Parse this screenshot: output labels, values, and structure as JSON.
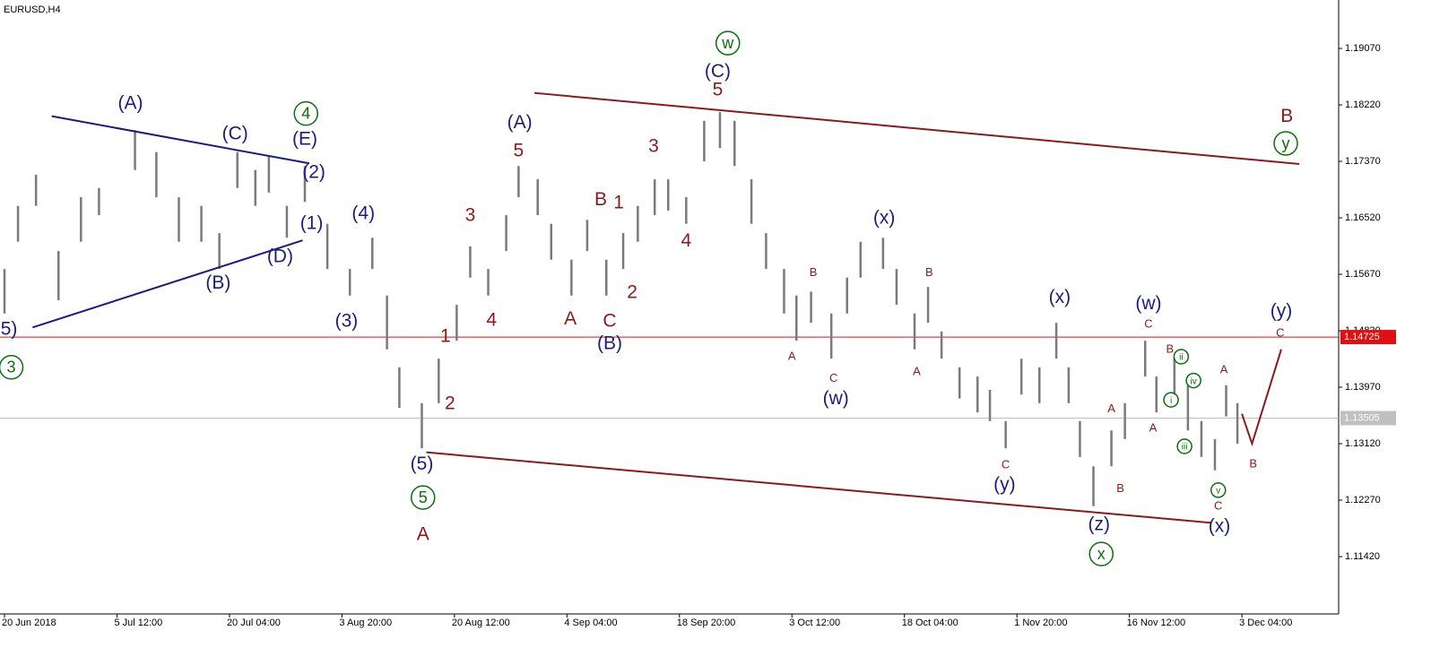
{
  "chart_data": {
    "type": "hlbar",
    "title": "EURUSD,H4",
    "color": "#7a7a7a",
    "x": [
      0.0,
      0.12,
      0.28,
      0.48,
      0.68,
      0.84,
      1.16,
      1.35,
      1.55,
      1.75,
      1.91,
      2.07,
      2.23,
      2.35,
      2.51,
      2.67,
      2.87,
      3.07,
      3.27,
      3.4,
      3.51,
      3.71,
      3.86,
      4.02,
      4.14,
      4.3,
      4.46,
      4.57,
      4.74,
      4.86,
      5.04,
      5.18,
      5.35,
      5.5,
      5.63,
      5.78,
      5.9,
      6.06,
      6.22,
      6.36,
      6.49,
      6.64,
      6.77,
      6.93,
      7.04,
      7.17,
      7.35,
      7.49,
      7.61,
      7.81,
      7.93,
      8.09,
      8.21,
      8.33,
      8.49,
      8.65,
      8.76,
      8.9,
      9.04,
      9.2,
      9.35,
      9.46,
      9.56,
      9.68,
      9.84,
      9.96,
      10.14,
      10.24,
      10.4,
      10.52,
      10.64,
      10.76,
      10.86,
      10.96
    ],
    "high": [
      1.1575,
      1.167,
      1.1717,
      1.1602,
      1.1683,
      1.1697,
      1.1784,
      1.1751,
      1.1683,
      1.167,
      1.1629,
      1.1751,
      1.1724,
      1.1744,
      1.167,
      1.173,
      1.1643,
      1.1575,
      1.1622,
      1.1535,
      1.1427,
      1.1373,
      1.144,
      1.1521,
      1.1609,
      1.1575,
      1.1656,
      1.173,
      1.171,
      1.1643,
      1.1589,
      1.1649,
      1.1589,
      1.1629,
      1.167,
      1.171,
      1.171,
      1.1683,
      1.1798,
      1.1811,
      1.1798,
      1.171,
      1.1629,
      1.1575,
      1.1535,
      1.1541,
      1.1508,
      1.1562,
      1.1616,
      1.1622,
      1.1575,
      1.1508,
      1.1548,
      1.1481,
      1.1427,
      1.1413,
      1.1393,
      1.1346,
      1.144,
      1.1427,
      1.1494,
      1.1427,
      1.1346,
      1.1278,
      1.1332,
      1.1373,
      1.1467,
      1.1413,
      1.144,
      1.14,
      1.1346,
      1.1319,
      1.14,
      1.1373
    ],
    "low": [
      1.1508,
      1.1616,
      1.167,
      1.1528,
      1.1616,
      1.1656,
      1.1724,
      1.1683,
      1.1616,
      1.1616,
      1.1575,
      1.1697,
      1.167,
      1.169,
      1.1622,
      1.1676,
      1.1575,
      1.1535,
      1.1575,
      1.1454,
      1.1366,
      1.1305,
      1.1373,
      1.1467,
      1.1562,
      1.1535,
      1.1602,
      1.1683,
      1.1656,
      1.1589,
      1.1535,
      1.1602,
      1.1535,
      1.1575,
      1.1616,
      1.1656,
      1.1663,
      1.1643,
      1.1737,
      1.1757,
      1.173,
      1.1643,
      1.1575,
      1.1508,
      1.1467,
      1.1494,
      1.144,
      1.1508,
      1.1562,
      1.1575,
      1.1521,
      1.1454,
      1.1494,
      1.144,
      1.138,
      1.1359,
      1.1346,
      1.1305,
      1.1386,
      1.1373,
      1.144,
      1.1373,
      1.1292,
      1.1218,
      1.1278,
      1.1319,
      1.1413,
      1.1359,
      1.1386,
      1.1332,
      1.1292,
      1.1272,
      1.1353,
      1.1312
    ],
    "xlim": [
      -0.04,
      11.86
    ],
    "xticks": [
      {
        "value": 0,
        "label": "20 Jun 2018"
      },
      {
        "value": 1,
        "label": "5 Jul 12:00"
      },
      {
        "value": 2,
        "label": "20 Jul 04:00"
      },
      {
        "value": 3,
        "label": "3 Aug 20:00"
      },
      {
        "value": 4,
        "label": "20 Aug 12:00"
      },
      {
        "value": 5,
        "label": "4 Sep 04:00"
      },
      {
        "value": 6,
        "label": "18 Sep 20:00"
      },
      {
        "value": 7,
        "label": "3 Oct 12:00"
      },
      {
        "value": 8,
        "label": "18 Oct 04:00"
      },
      {
        "value": 9,
        "label": "1 Nov 20:00"
      },
      {
        "value": 10,
        "label": "16 Nov 12:00"
      },
      {
        "value": 11,
        "label": "3 Dec 04:00"
      }
    ],
    "ylim": [
      1.10557,
      1.19799
    ],
    "yticks": [
      {
        "value": 1.1907,
        "label": "1.19070"
      },
      {
        "value": 1.1822,
        "label": "1.18220"
      },
      {
        "value": 1.1737,
        "label": "1.17370"
      },
      {
        "value": 1.1652,
        "label": "1.16520"
      },
      {
        "value": 1.1567,
        "label": "1.15670"
      },
      {
        "value": 1.1482,
        "label": "1.14820"
      },
      {
        "value": 1.1397,
        "label": "1.13970"
      },
      {
        "value": 1.1312,
        "label": "1.13120"
      },
      {
        "value": 1.1227,
        "label": "1.12270"
      },
      {
        "value": 1.1142,
        "label": "1.11420"
      }
    ],
    "levels": [
      {
        "value": 1.14725,
        "color": "#e01010"
      },
      {
        "value": 1.13505,
        "color": "#c0c0c0"
      }
    ],
    "trendlines": [
      {
        "x": [
          0.42,
          2.71
        ],
        "y": [
          1.1805,
          1.1734
        ],
        "color": "#1c1c7c"
      },
      {
        "x": [
          0.25,
          2.65
        ],
        "y": [
          1.1487,
          1.1618
        ],
        "color": "#1c1c7c"
      },
      {
        "x": [
          4.71,
          11.51
        ],
        "y": [
          1.184,
          1.1733
        ],
        "color": "#8b1a1a"
      },
      {
        "x": [
          3.75,
          10.72
        ],
        "y": [
          1.1299,
          1.1193
        ],
        "color": "#8b1a1a"
      },
      {
        "x": [
          11.0,
          11.09,
          11.35
        ],
        "y": [
          1.1357,
          1.1312,
          1.1454
        ],
        "color": "#8b1a1a"
      }
    ],
    "annotations": [
      {
        "text": "5)",
        "x": 0.04,
        "y": 1.1485,
        "color": "#1c1c7c",
        "style": "large"
      },
      {
        "text": "3",
        "x": 0.06,
        "y": 1.1427,
        "color": "#0a6e0a",
        "style": "circled"
      },
      {
        "text": "(A)",
        "x": 1.12,
        "y": 1.1825,
        "color": "#1c1c7c",
        "style": "large"
      },
      {
        "text": "(C)",
        "x": 2.05,
        "y": 1.1779,
        "color": "#1c1c7c",
        "style": "large"
      },
      {
        "text": "4",
        "x": 2.68,
        "y": 1.1809,
        "color": "#0a6e0a",
        "style": "circled"
      },
      {
        "text": "(E)",
        "x": 2.67,
        "y": 1.1771,
        "color": "#1c1c7c",
        "style": "large"
      },
      {
        "text": "(2)",
        "x": 2.75,
        "y": 1.1721,
        "color": "#1c1c7c",
        "style": "large"
      },
      {
        "text": "(1)",
        "x": 2.73,
        "y": 1.1644,
        "color": "#1c1c7c",
        "style": "large"
      },
      {
        "text": "(D)",
        "x": 2.45,
        "y": 1.1594,
        "color": "#1c1c7c",
        "style": "large"
      },
      {
        "text": "(B)",
        "x": 1.9,
        "y": 1.1554,
        "color": "#1c1c7c",
        "style": "large"
      },
      {
        "text": "(4)",
        "x": 3.19,
        "y": 1.1659,
        "color": "#1c1c7c",
        "style": "large"
      },
      {
        "text": "(3)",
        "x": 3.04,
        "y": 1.1497,
        "color": "#1c1c7c",
        "style": "large"
      },
      {
        "text": "(5)",
        "x": 3.71,
        "y": 1.1282,
        "color": "#1c1c7c",
        "style": "large"
      },
      {
        "text": "5",
        "x": 3.72,
        "y": 1.1231,
        "color": "#0a6e0a",
        "style": "circled"
      },
      {
        "text": "A",
        "x": 3.72,
        "y": 1.1176,
        "color": "#8b1a1a",
        "style": "large"
      },
      {
        "text": "1",
        "x": 3.92,
        "y": 1.1474,
        "color": "#8b1a1a",
        "style": "large"
      },
      {
        "text": "2",
        "x": 3.96,
        "y": 1.1373,
        "color": "#8b1a1a",
        "style": "large"
      },
      {
        "text": "3",
        "x": 4.14,
        "y": 1.1656,
        "color": "#8b1a1a",
        "style": "large"
      },
      {
        "text": "4",
        "x": 4.33,
        "y": 1.1498,
        "color": "#8b1a1a",
        "style": "large"
      },
      {
        "text": "5",
        "x": 4.57,
        "y": 1.1753,
        "color": "#8b1a1a",
        "style": "large"
      },
      {
        "text": "(A)",
        "x": 4.58,
        "y": 1.1796,
        "color": "#1c1c7c",
        "style": "large"
      },
      {
        "text": "A",
        "x": 5.03,
        "y": 1.15,
        "color": "#8b1a1a",
        "style": "large"
      },
      {
        "text": "B",
        "x": 5.3,
        "y": 1.168,
        "color": "#8b1a1a",
        "style": "large"
      },
      {
        "text": "1",
        "x": 5.46,
        "y": 1.1675,
        "color": "#8b1a1a",
        "style": "large"
      },
      {
        "text": "2",
        "x": 5.58,
        "y": 1.154,
        "color": "#8b1a1a",
        "style": "large"
      },
      {
        "text": "3",
        "x": 5.77,
        "y": 1.176,
        "color": "#8b1a1a",
        "style": "large"
      },
      {
        "text": "4",
        "x": 6.06,
        "y": 1.1618,
        "color": "#8b1a1a",
        "style": "large"
      },
      {
        "text": "C",
        "x": 5.38,
        "y": 1.1497,
        "color": "#8b1a1a",
        "style": "large"
      },
      {
        "text": "(B)",
        "x": 5.38,
        "y": 1.1463,
        "color": "#1c1c7c",
        "style": "large"
      },
      {
        "text": "w",
        "x": 6.43,
        "y": 1.1915,
        "color": "#0a6e0a",
        "style": "circled"
      },
      {
        "text": "(C)",
        "x": 6.34,
        "y": 1.1873,
        "color": "#1c1c7c",
        "style": "large"
      },
      {
        "text": "5",
        "x": 6.34,
        "y": 1.1845,
        "color": "#8b1a1a",
        "style": "large"
      },
      {
        "text": "A",
        "x": 7.0,
        "y": 1.1444,
        "color": "#8b1a1a",
        "style": "small"
      },
      {
        "text": "B",
        "x": 7.19,
        "y": 1.157,
        "color": "#8b1a1a",
        "style": "small"
      },
      {
        "text": "C",
        "x": 7.37,
        "y": 1.1411,
        "color": "#8b1a1a",
        "style": "small"
      },
      {
        "text": "(w)",
        "x": 7.39,
        "y": 1.138,
        "color": "#1c1c7c",
        "style": "large"
      },
      {
        "text": "(x)",
        "x": 7.82,
        "y": 1.1652,
        "color": "#1c1c7c",
        "style": "large"
      },
      {
        "text": "A",
        "x": 8.11,
        "y": 1.1421,
        "color": "#8b1a1a",
        "style": "small"
      },
      {
        "text": "B",
        "x": 8.22,
        "y": 1.157,
        "color": "#8b1a1a",
        "style": "small"
      },
      {
        "text": "C",
        "x": 8.9,
        "y": 1.1281,
        "color": "#8b1a1a",
        "style": "small"
      },
      {
        "text": "(y)",
        "x": 8.89,
        "y": 1.1251,
        "color": "#1c1c7c",
        "style": "large"
      },
      {
        "text": "(x)",
        "x": 9.38,
        "y": 1.1533,
        "color": "#1c1c7c",
        "style": "large"
      },
      {
        "text": "A",
        "x": 9.84,
        "y": 1.1365,
        "color": "#8b1a1a",
        "style": "small"
      },
      {
        "text": "B",
        "x": 9.92,
        "y": 1.1245,
        "color": "#8b1a1a",
        "style": "small"
      },
      {
        "text": "(z)",
        "x": 9.73,
        "y": 1.1191,
        "color": "#1c1c7c",
        "style": "large"
      },
      {
        "text": "x",
        "x": 9.75,
        "y": 1.1146,
        "color": "#0a6e0a",
        "style": "circled"
      },
      {
        "text": "(w)",
        "x": 10.17,
        "y": 1.1523,
        "color": "#1c1c7c",
        "style": "large"
      },
      {
        "text": "C",
        "x": 10.17,
        "y": 1.1493,
        "color": "#8b1a1a",
        "style": "small"
      },
      {
        "text": "A",
        "x": 10.21,
        "y": 1.1336,
        "color": "#8b1a1a",
        "style": "small"
      },
      {
        "text": "B",
        "x": 10.36,
        "y": 1.1455,
        "color": "#8b1a1a",
        "style": "small"
      },
      {
        "text": "ii",
        "x": 10.46,
        "y": 1.1443,
        "color": "#0a6e0a",
        "style": "circled-small"
      },
      {
        "text": "i",
        "x": 10.37,
        "y": 1.1378,
        "color": "#0a6e0a",
        "style": "circled-small"
      },
      {
        "text": "iv",
        "x": 10.57,
        "y": 1.1407,
        "color": "#0a6e0a",
        "style": "circled-small"
      },
      {
        "text": "iii",
        "x": 10.49,
        "y": 1.1308,
        "color": "#0a6e0a",
        "style": "circled-small"
      },
      {
        "text": "v",
        "x": 10.79,
        "y": 1.1242,
        "color": "#0a6e0a",
        "style": "circled-small"
      },
      {
        "text": "C",
        "x": 10.79,
        "y": 1.1219,
        "color": "#8b1a1a",
        "style": "small"
      },
      {
        "text": "A",
        "x": 10.84,
        "y": 1.1424,
        "color": "#8b1a1a",
        "style": "small"
      },
      {
        "text": "B",
        "x": 11.1,
        "y": 1.1282,
        "color": "#8b1a1a",
        "style": "small"
      },
      {
        "text": "(x)",
        "x": 10.8,
        "y": 1.1188,
        "color": "#1c1c7c",
        "style": "large"
      },
      {
        "text": "(y)",
        "x": 11.35,
        "y": 1.1512,
        "color": "#1c1c7c",
        "style": "large"
      },
      {
        "text": "C",
        "x": 11.34,
        "y": 1.1479,
        "color": "#8b1a1a",
        "style": "small"
      },
      {
        "text": "B",
        "x": 11.4,
        "y": 1.1805,
        "color": "#8b1a1a",
        "style": "large"
      },
      {
        "text": "y",
        "x": 11.39,
        "y": 1.1764,
        "color": "#0a6e0a",
        "style": "circled"
      }
    ]
  }
}
